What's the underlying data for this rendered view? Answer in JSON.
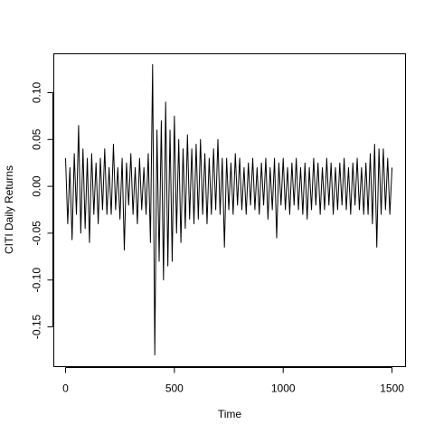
{
  "chart_data": {
    "type": "line",
    "x_label": "Time",
    "y_label": "CITI Daily Returns",
    "x": [
      0,
      10,
      20,
      30,
      40,
      50,
      60,
      70,
      80,
      90,
      100,
      110,
      120,
      130,
      140,
      150,
      160,
      170,
      180,
      190,
      200,
      210,
      220,
      230,
      240,
      250,
      260,
      270,
      280,
      290,
      300,
      310,
      320,
      330,
      340,
      350,
      360,
      370,
      380,
      390,
      400,
      410,
      420,
      430,
      440,
      450,
      460,
      470,
      480,
      490,
      500,
      510,
      520,
      530,
      540,
      550,
      560,
      570,
      580,
      590,
      600,
      610,
      620,
      630,
      640,
      650,
      660,
      670,
      680,
      690,
      700,
      710,
      720,
      730,
      740,
      750,
      760,
      770,
      780,
      790,
      800,
      810,
      820,
      830,
      840,
      850,
      860,
      870,
      880,
      890,
      900,
      910,
      920,
      930,
      940,
      950,
      960,
      970,
      980,
      990,
      1000,
      1010,
      1020,
      1030,
      1040,
      1050,
      1060,
      1070,
      1080,
      1090,
      1100,
      1110,
      1120,
      1130,
      1140,
      1150,
      1160,
      1170,
      1180,
      1190,
      1200,
      1210,
      1220,
      1230,
      1240,
      1250,
      1260,
      1270,
      1280,
      1290,
      1300,
      1310,
      1320,
      1330,
      1340,
      1350,
      1360,
      1370,
      1380,
      1390,
      1400,
      1410,
      1420,
      1430,
      1440,
      1450,
      1460,
      1470,
      1480,
      1490,
      1500
    ],
    "series": [
      {
        "color": "#000000",
        "values": [
          0.03,
          -0.04,
          0.02,
          -0.057,
          0.035,
          -0.03,
          0.065,
          -0.05,
          0.04,
          -0.045,
          0.03,
          -0.06,
          0.035,
          -0.03,
          0.025,
          -0.04,
          0.03,
          -0.025,
          0.04,
          -0.03,
          0.02,
          -0.03,
          0.045,
          -0.025,
          0.02,
          -0.035,
          0.03,
          -0.068,
          0.025,
          -0.02,
          0.035,
          -0.03,
          0.02,
          -0.04,
          0.03,
          -0.025,
          0.02,
          -0.03,
          0.035,
          -0.06,
          0.13,
          -0.18,
          0.06,
          -0.08,
          0.07,
          -0.1,
          0.09,
          -0.085,
          0.06,
          -0.08,
          0.075,
          -0.05,
          0.05,
          -0.06,
          0.04,
          -0.045,
          0.055,
          -0.035,
          0.04,
          -0.04,
          0.045,
          -0.035,
          0.05,
          -0.03,
          0.035,
          -0.04,
          0.03,
          -0.03,
          0.04,
          -0.025,
          0.05,
          -0.03,
          0.03,
          -0.065,
          0.03,
          -0.025,
          0.025,
          -0.03,
          0.035,
          -0.02,
          0.03,
          -0.025,
          0.02,
          -0.03,
          0.025,
          -0.02,
          0.03,
          -0.025,
          0.02,
          -0.03,
          0.025,
          -0.02,
          0.03,
          -0.035,
          0.02,
          -0.025,
          0.03,
          -0.055,
          0.025,
          -0.02,
          0.03,
          -0.025,
          0.02,
          -0.03,
          0.025,
          -0.02,
          0.03,
          -0.025,
          0.02,
          -0.03,
          0.025,
          -0.035,
          0.02,
          -0.025,
          0.03,
          -0.02,
          0.025,
          -0.03,
          0.02,
          -0.025,
          0.03,
          -0.02,
          0.025,
          -0.03,
          0.02,
          -0.025,
          0.025,
          -0.02,
          0.03,
          -0.025,
          0.02,
          -0.03,
          0.025,
          -0.02,
          0.03,
          -0.025,
          0.02,
          -0.03,
          0.025,
          -0.03,
          0.035,
          -0.04,
          0.045,
          -0.065,
          0.04,
          -0.03,
          0.04,
          -0.025,
          0.03,
          -0.03,
          0.02
        ]
      }
    ],
    "xlim": [
      -54,
      1562
    ],
    "ylim": [
      -0.1925,
      0.1415
    ],
    "xticks": [
      0,
      500,
      1000,
      1500
    ],
    "yticks": [
      {
        "value": -0.15,
        "label": "-0.15"
      },
      {
        "value": -0.1,
        "label": "-0.10"
      },
      {
        "value": -0.05,
        "label": "-0.05"
      },
      {
        "value": 0,
        "label": "0.00"
      },
      {
        "value": 0.05,
        "label": "0.05"
      },
      {
        "value": 0.1,
        "label": "0.10"
      }
    ],
    "grid": false
  }
}
